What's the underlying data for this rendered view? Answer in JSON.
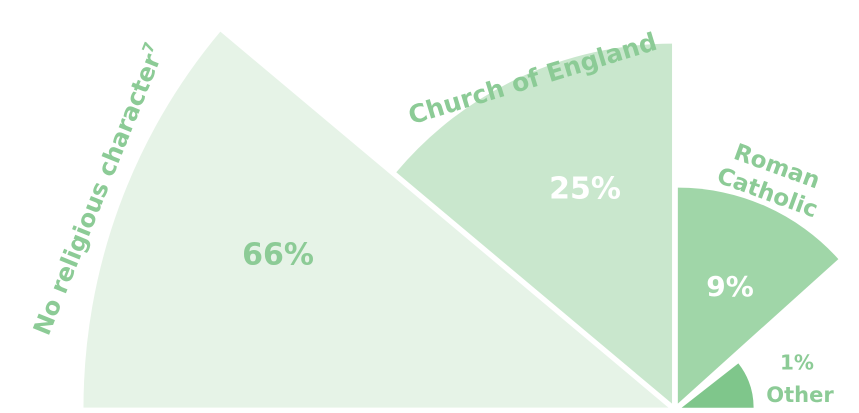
{
  "chart_data": {
    "type": "polar-area",
    "categories": [
      "No religious character",
      "Church of England",
      "Roman Catholic",
      "Other"
    ],
    "footnote": "7",
    "values": [
      66,
      25,
      9,
      1
    ],
    "value_labels": [
      "66%",
      "25%",
      "9%",
      "1%"
    ],
    "colors": [
      "#e6f3e7",
      "#c9e7cd",
      "#a0d6a8",
      "#7fc68b"
    ],
    "label_color": "#8ccb96"
  }
}
